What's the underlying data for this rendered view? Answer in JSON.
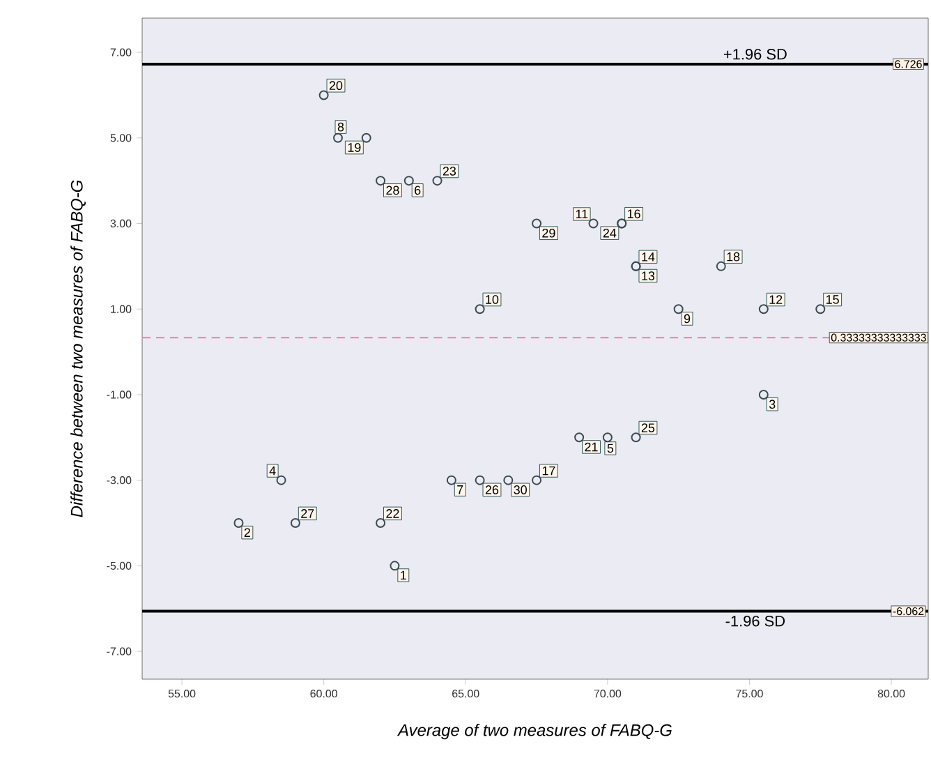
{
  "chart_data": {
    "type": "scatter",
    "xlabel": "Average of two measures of FABQ-G",
    "ylabel": "Difference between two measures of FABQ-G",
    "x": [
      62.5,
      57,
      75.5,
      58.5,
      70,
      63,
      64.5,
      60.5,
      72.5,
      65.5,
      69.5,
      75.5,
      71,
      71,
      77.5,
      70.5,
      67.5,
      74,
      61.5,
      60,
      69,
      62,
      64,
      70.5,
      71,
      65.5,
      59,
      62,
      67.5,
      66.5
    ],
    "values": [
      -5,
      -4,
      -1,
      -3,
      -2,
      4,
      -3,
      5,
      1,
      1,
      3,
      1,
      2,
      2,
      1,
      3,
      -3,
      2,
      5,
      6,
      -2,
      -4,
      4,
      3,
      -2,
      -3,
      -4,
      4,
      3,
      -3
    ],
    "color": "#3c4a52",
    "marker": "circle",
    "grid": false,
    "xlim": [
      53.6,
      81.3
    ],
    "ylim": [
      -7.65,
      7.8
    ],
    "xticks": [
      {
        "value": 55,
        "label": "55.00"
      },
      {
        "value": 60,
        "label": "60.00"
      },
      {
        "value": 65,
        "label": "65.00"
      },
      {
        "value": 70,
        "label": "70.00"
      },
      {
        "value": 75,
        "label": "75.00"
      },
      {
        "value": 80,
        "label": "80.00"
      }
    ],
    "yticks": [
      {
        "value": 7,
        "label": "7.00"
      },
      {
        "value": 5,
        "label": "5.00"
      },
      {
        "value": 3,
        "label": "3.00"
      },
      {
        "value": 1,
        "label": "1.00"
      },
      {
        "value": -1,
        "label": "-1.00"
      },
      {
        "value": -3,
        "label": "-3.00"
      },
      {
        "value": -5,
        "label": "-5.00"
      },
      {
        "value": -7,
        "label": "-7.00"
      }
    ],
    "ref_lines": [
      {
        "axis": "y",
        "value": 6.726,
        "label": "+1.96 SD",
        "color": "#000000",
        "line_style": "solid"
      },
      {
        "axis": "y",
        "value": -6.062,
        "label": "-1.96 SD",
        "color": "#000000",
        "line_style": "solid"
      },
      {
        "axis": "y",
        "value": 0.33333333333333,
        "label": "0.33333333333333",
        "color": "#e58fb4",
        "line_style": "dashed"
      }
    ],
    "annotations": [
      {
        "text": "1",
        "x": 62.5,
        "y": -5
      },
      {
        "text": "2",
        "x": 57,
        "y": -4
      },
      {
        "text": "3",
        "x": 75.5,
        "y": -1
      },
      {
        "text": "4",
        "x": 58.5,
        "y": -3
      },
      {
        "text": "5",
        "x": 70,
        "y": -2
      },
      {
        "text": "6",
        "x": 63,
        "y": 4
      },
      {
        "text": "7",
        "x": 64.5,
        "y": -3
      },
      {
        "text": "8",
        "x": 60.5,
        "y": 5
      },
      {
        "text": "9",
        "x": 72.5,
        "y": 1
      },
      {
        "text": "10",
        "x": 65.5,
        "y": 1
      },
      {
        "text": "11",
        "x": 69.5,
        "y": 3
      },
      {
        "text": "12",
        "x": 75.5,
        "y": 1
      },
      {
        "text": "13",
        "x": 71,
        "y": 2
      },
      {
        "text": "14",
        "x": 71,
        "y": 2
      },
      {
        "text": "15",
        "x": 77.5,
        "y": 1
      },
      {
        "text": "16",
        "x": 70.5,
        "y": 3
      },
      {
        "text": "17",
        "x": 67.5,
        "y": -3
      },
      {
        "text": "18",
        "x": 74,
        "y": 2
      },
      {
        "text": "19",
        "x": 61.5,
        "y": 5
      },
      {
        "text": "20",
        "x": 60,
        "y": 6
      },
      {
        "text": "21",
        "x": 69,
        "y": -2
      },
      {
        "text": "22",
        "x": 62,
        "y": -4
      },
      {
        "text": "23",
        "x": 64,
        "y": 4
      },
      {
        "text": "24",
        "x": 70.5,
        "y": 3
      },
      {
        "text": "25",
        "x": 71,
        "y": -2
      },
      {
        "text": "26",
        "x": 65.5,
        "y": -3
      },
      {
        "text": "27",
        "x": 59,
        "y": -4
      },
      {
        "text": "28",
        "x": 62,
        "y": 4
      },
      {
        "text": "29",
        "x": 67.5,
        "y": 3
      },
      {
        "text": "30",
        "x": 66.5,
        "y": -3
      },
      {
        "text": "6.726",
        "x": 80.6,
        "y": 6.726
      },
      {
        "text": "-6.062",
        "x": 80.6,
        "y": -6.062
      }
    ]
  }
}
